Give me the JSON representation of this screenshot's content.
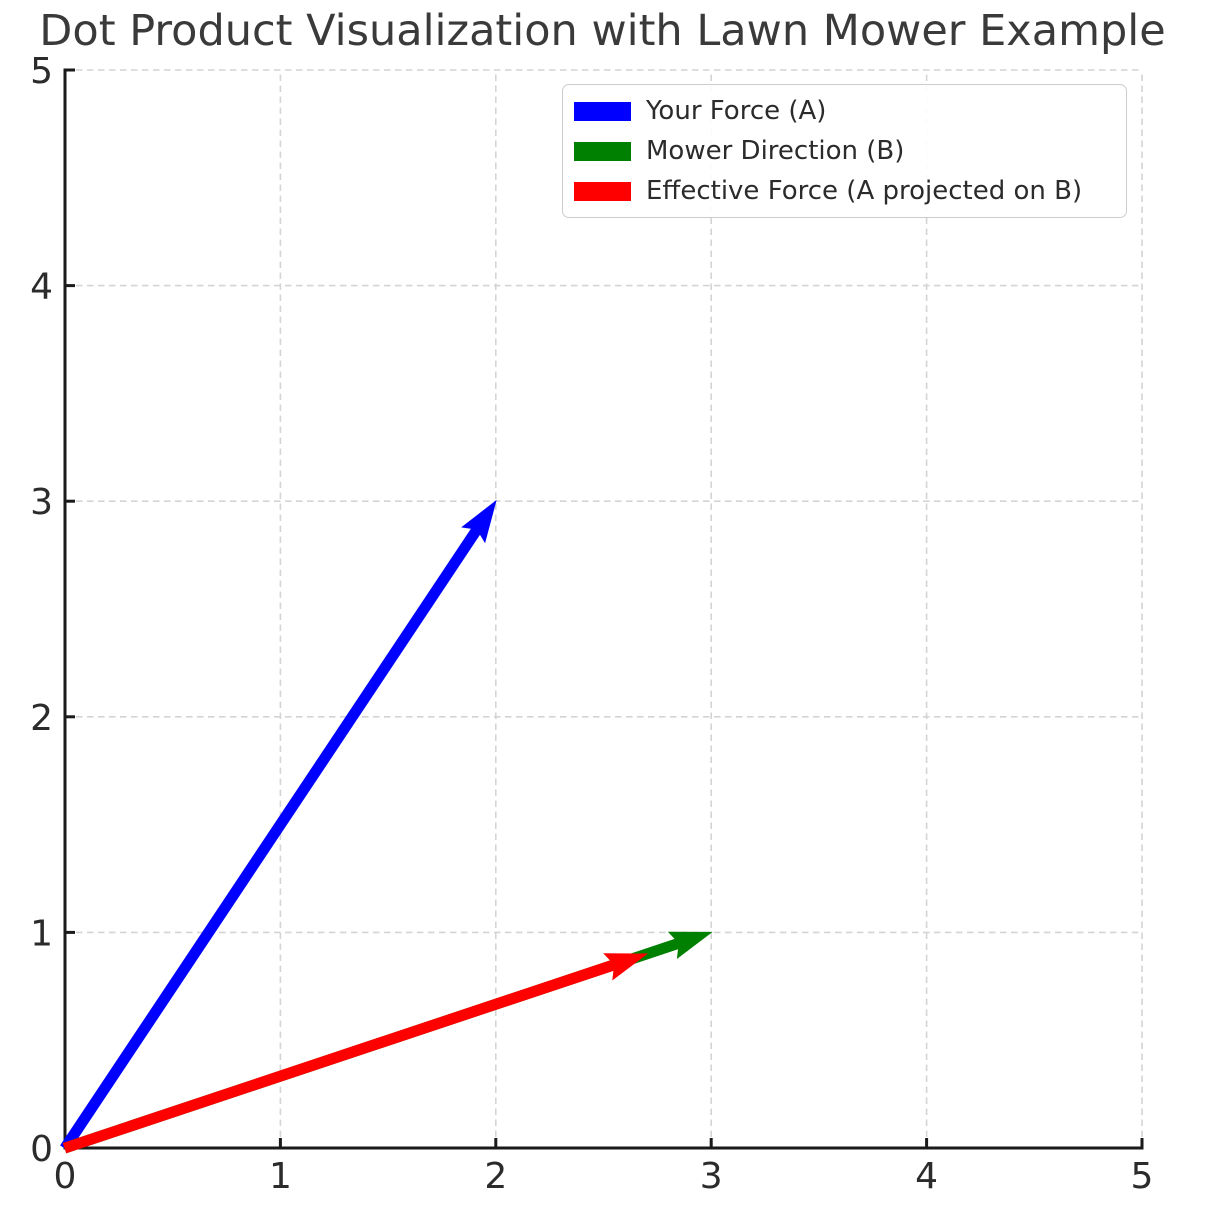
{
  "figure": {
    "title": "Dot Product Visualization with Lawn Mower Example"
  },
  "chart_data": {
    "type": "quiver",
    "title": "Dot Product Visualization with Lawn Mower Example",
    "xlabel": "",
    "ylabel": "",
    "xlim": [
      0,
      5
    ],
    "ylim": [
      0,
      5
    ],
    "x_ticks": [
      0,
      1,
      2,
      3,
      4,
      5
    ],
    "y_ticks": [
      0,
      1,
      2,
      3,
      4,
      5
    ],
    "grid": true,
    "grid_style": "dashed",
    "legend_position": "upper right",
    "vectors": [
      {
        "label": "Your Force (A)",
        "tail": [
          0,
          0
        ],
        "tip": [
          2,
          3
        ],
        "color": "#0000ff"
      },
      {
        "label": "Mower Direction (B)",
        "tail": [
          0,
          0
        ],
        "tip": [
          3,
          1
        ],
        "color": "#008000"
      },
      {
        "label": "Effective Force (A projected on B)",
        "tail": [
          0,
          0
        ],
        "tip": [
          2.7,
          0.9
        ],
        "color": "#ff0000"
      }
    ],
    "legend": [
      {
        "label": "Your Force (A)",
        "color": "#0000ff"
      },
      {
        "label": "Mower Direction (B)",
        "color": "#008000"
      },
      {
        "label": "Effective Force (A projected on B)",
        "color": "#ff0000"
      }
    ]
  },
  "colors": {
    "background": "#ffffff",
    "axis": "#1a1a1a",
    "grid": "#d4d4d4",
    "tick_label": "#2b2b2b",
    "title": "#3a3a3a",
    "legend_border": "#cccccc",
    "legend_background": "#ffffff"
  }
}
